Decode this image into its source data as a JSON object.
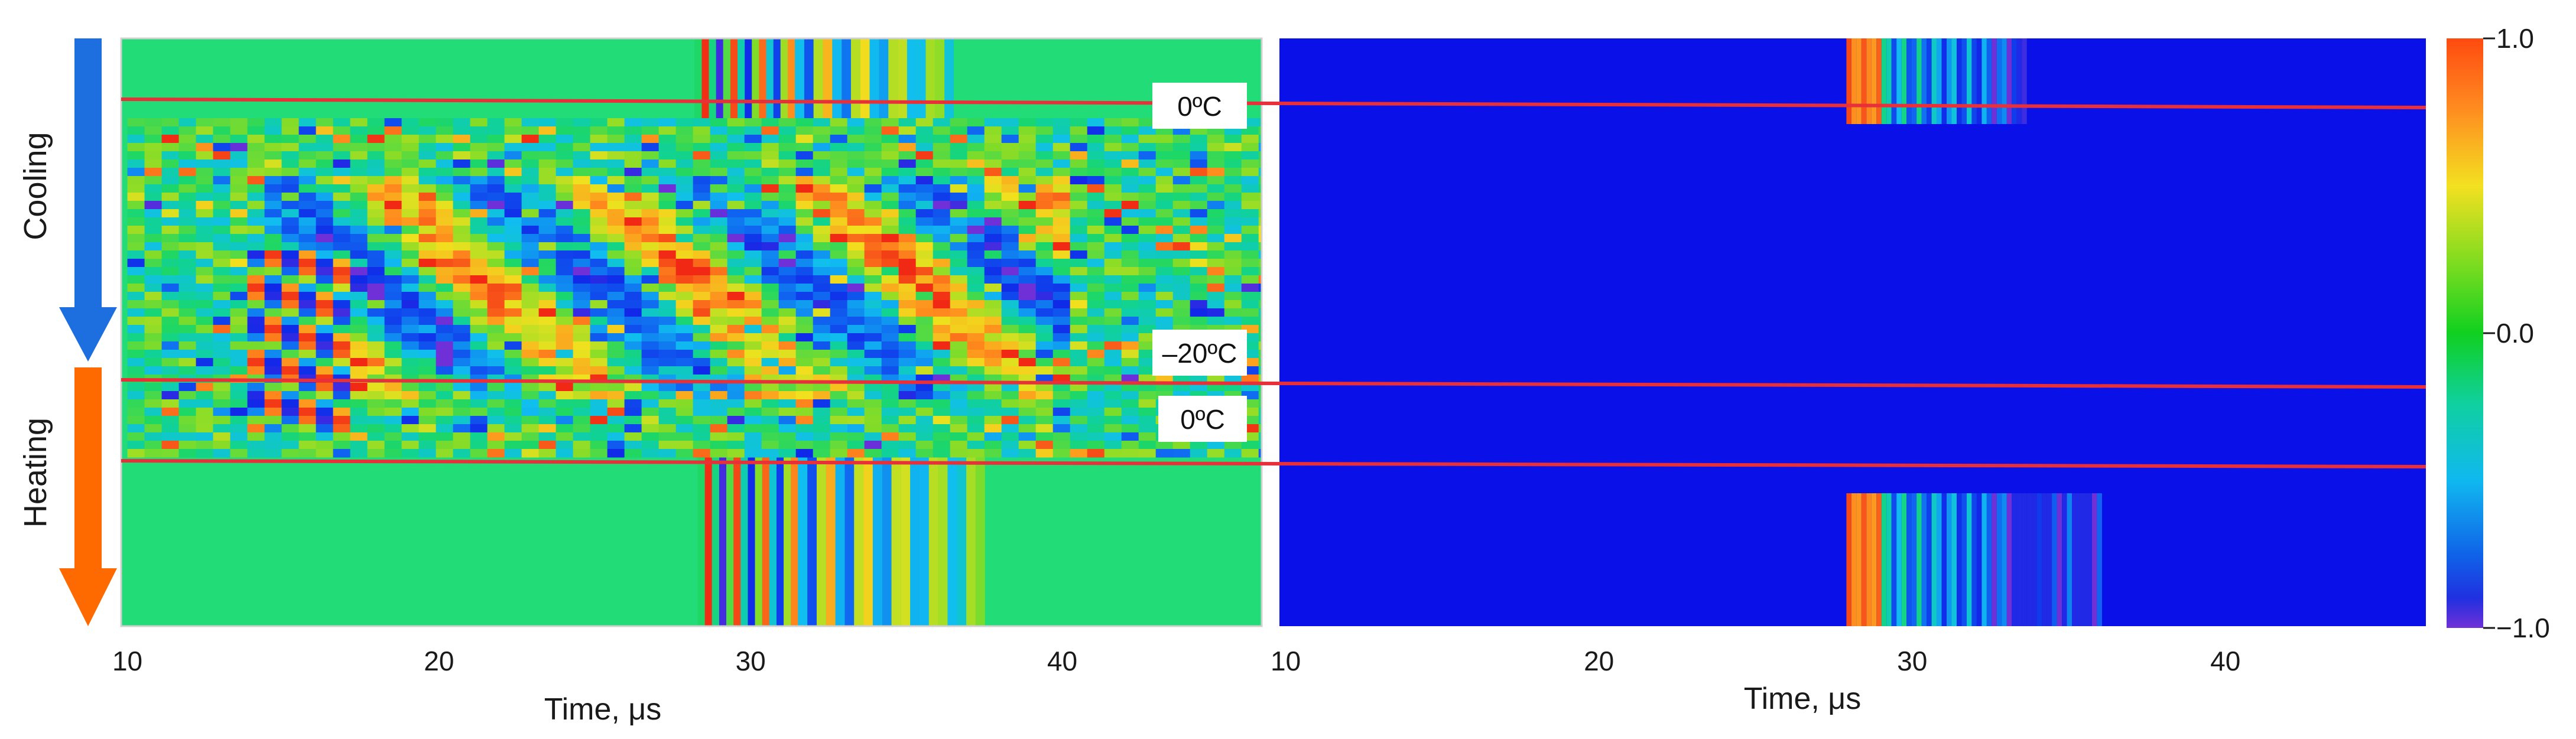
{
  "chart_data": [
    {
      "type": "heatmap",
      "panel": "left",
      "xlabel": "Time, μs",
      "xlim": [
        9.8,
        46.4
      ],
      "xticks": [
        10,
        20,
        30,
        40
      ],
      "annotations": [
        {
          "text": "0ºC",
          "line_fraction": 0.1
        },
        {
          "text": "–20ºC",
          "line_fraction": 0.575
        },
        {
          "text": "0ºC",
          "line_fraction": 0.715
        }
      ],
      "side_labels": [
        {
          "text": "Cooling",
          "arrow_color": "#1d6fe0",
          "direction": "down"
        },
        {
          "text": "Heating",
          "arrow_color": "#ff6a00",
          "direction": "down"
        }
      ],
      "line_color": "#e8303a",
      "colormap": "jet"
    },
    {
      "type": "heatmap",
      "panel": "right",
      "xlabel": "Time, μs",
      "xlim": [
        9.8,
        46.4
      ],
      "xticks": [
        10,
        20,
        30,
        40
      ],
      "line_color": "#e8303a",
      "colormap": "jet",
      "colorbar": {
        "ticks": [
          {
            "value": 1.0,
            "label": "1.0"
          },
          {
            "value": 0.0,
            "label": "0.0"
          },
          {
            "value": -1.0,
            "label": "−1.0"
          }
        ]
      }
    }
  ]
}
